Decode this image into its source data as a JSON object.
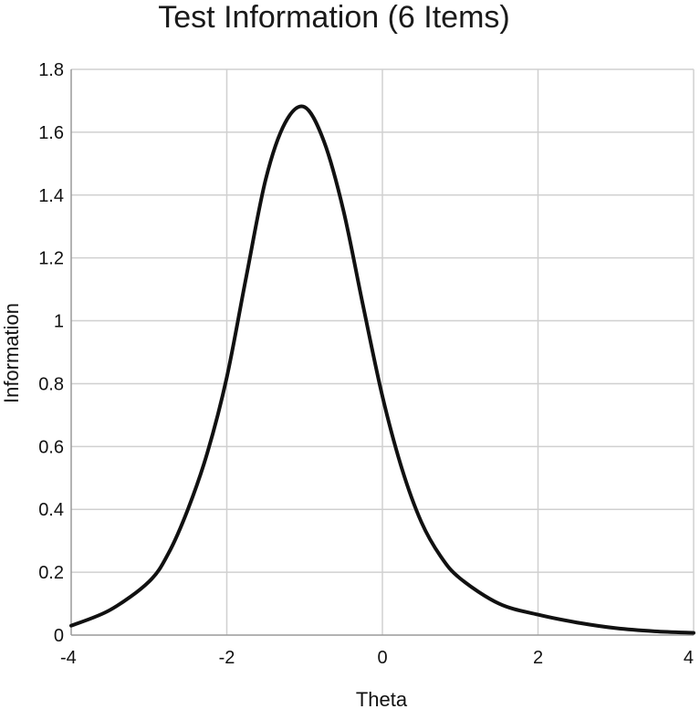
{
  "chart_data": {
    "type": "line",
    "title": "Test Information (6 Items)",
    "xlabel": "Theta",
    "ylabel": "Information",
    "xlim": [
      -4,
      4
    ],
    "ylim": [
      0,
      1.8
    ],
    "x_ticks": [
      "-4",
      "-2",
      "0",
      "2",
      "4"
    ],
    "y_ticks": [
      "0",
      "0.2",
      "0.4",
      "0.6",
      "0.8",
      "1",
      "1.2",
      "1.4",
      "1.6",
      "1.8"
    ],
    "grid": true,
    "legend": "none",
    "series": [
      {
        "x": [
          -4.0,
          -3.5,
          -3.0,
          -2.75,
          -2.5,
          -2.25,
          -2.0,
          -1.75,
          -1.5,
          -1.25,
          -1.0,
          -0.75,
          -0.5,
          -0.25,
          0.0,
          0.25,
          0.5,
          0.75,
          1.0,
          1.5,
          2.0,
          2.5,
          3.0,
          3.5,
          4.0
        ],
        "y": [
          0.03,
          0.08,
          0.17,
          0.26,
          0.4,
          0.58,
          0.82,
          1.14,
          1.45,
          1.63,
          1.68,
          1.57,
          1.35,
          1.05,
          0.76,
          0.53,
          0.36,
          0.25,
          0.18,
          0.1,
          0.065,
          0.04,
          0.022,
          0.012,
          0.007
        ]
      }
    ],
    "line_color": "#111111",
    "grid_color": "#d0d0d0"
  }
}
